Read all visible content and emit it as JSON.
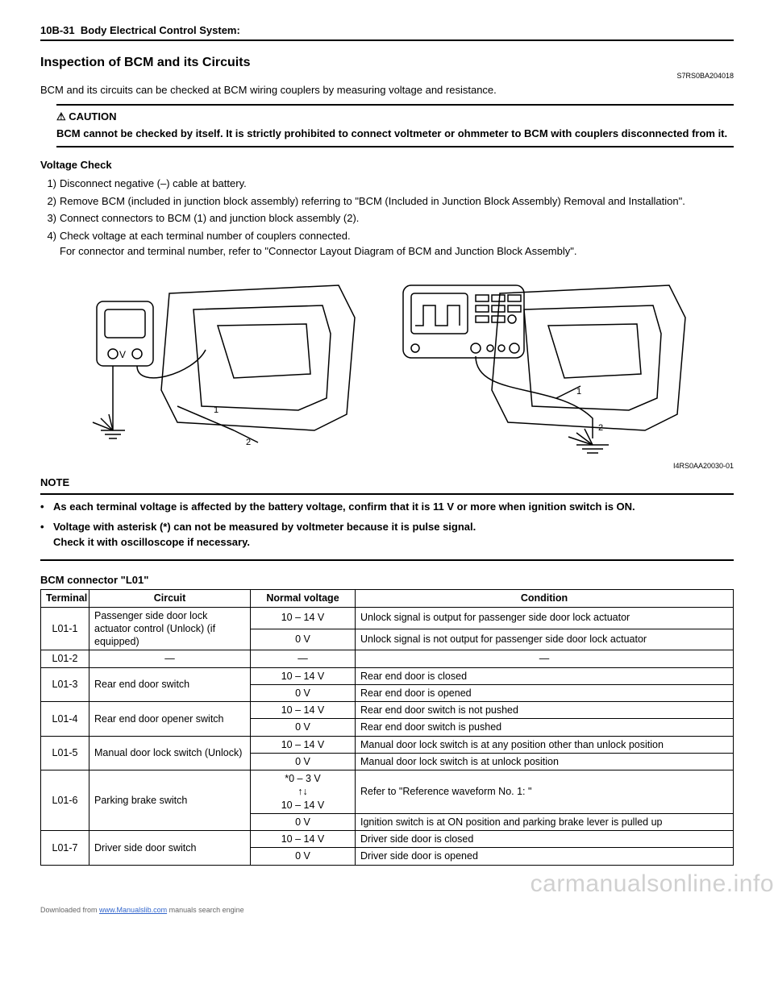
{
  "header": {
    "page_ref": "10B-31",
    "section": "Body Electrical Control System:"
  },
  "title": "Inspection of BCM and its Circuits",
  "doc_code": "S7RS0BA204018",
  "intro": "BCM and its circuits can be checked at BCM wiring couplers by measuring voltage and resistance.",
  "caution": {
    "label": "⚠ CAUTION",
    "text": "BCM cannot be checked by itself. It is strictly prohibited to connect voltmeter or ohmmeter to BCM with couplers disconnected from it."
  },
  "voltage_check": {
    "heading": "Voltage Check",
    "steps": [
      "Disconnect negative (–) cable at battery.",
      "Remove BCM (included in junction block assembly) referring to \"BCM (Included in Junction Block Assembly) Removal and Installation\".",
      "Connect connectors to BCM (1) and junction block assembly (2).",
      "Check voltage at each terminal number of couplers connected.\nFor connector and terminal number, refer to \"Connector Layout Diagram of BCM and Junction Block Assembly\"."
    ]
  },
  "figure_code": "I4RS0AA20030-01",
  "note": {
    "label": "NOTE",
    "items": [
      "As each terminal voltage is affected by the battery voltage, confirm that it is 11 V or more when ignition switch is ON.",
      "Voltage with asterisk (*) can not be measured by voltmeter because it is pulse signal.\nCheck it with oscilloscope if necessary."
    ]
  },
  "table": {
    "title": "BCM connector \"L01\"",
    "headers": [
      "Terminal",
      "Circuit",
      "Normal voltage",
      "Condition"
    ],
    "rows": [
      {
        "terminal": "L01-1",
        "circuit": "Passenger side door lock actuator control (Unlock) (if equipped)",
        "entries": [
          {
            "voltage": "10 – 14 V",
            "condition": "Unlock signal is output for passenger side door lock actuator"
          },
          {
            "voltage": "0 V",
            "condition": "Unlock signal is not output for passenger side door lock actuator"
          }
        ]
      },
      {
        "terminal": "L01-2",
        "circuit": "—",
        "entries": [
          {
            "voltage": "—",
            "condition": "—"
          }
        ]
      },
      {
        "terminal": "L01-3",
        "circuit": "Rear end door switch",
        "entries": [
          {
            "voltage": "10 – 14 V",
            "condition": "Rear end door is closed"
          },
          {
            "voltage": "0 V",
            "condition": "Rear end door is opened"
          }
        ]
      },
      {
        "terminal": "L01-4",
        "circuit": "Rear end door opener switch",
        "entries": [
          {
            "voltage": "10 – 14 V",
            "condition": "Rear end door switch is not pushed"
          },
          {
            "voltage": "0 V",
            "condition": "Rear end door switch is pushed"
          }
        ]
      },
      {
        "terminal": "L01-5",
        "circuit": "Manual door lock switch (Unlock)",
        "entries": [
          {
            "voltage": "10 – 14 V",
            "condition": "Manual door lock switch is at any position other than unlock position"
          },
          {
            "voltage": "0 V",
            "condition": "Manual door lock switch is at unlock position"
          }
        ]
      },
      {
        "terminal": "L01-6",
        "circuit": "Parking brake switch",
        "entries": [
          {
            "voltage": "*0 – 3 V\n↑↓\n10 – 14 V",
            "condition": "Refer to \"Reference waveform No. 1: \""
          },
          {
            "voltage": "0 V",
            "condition": "Ignition switch is at ON position and parking brake lever is pulled up"
          }
        ]
      },
      {
        "terminal": "L01-7",
        "circuit": "Driver side door switch",
        "entries": [
          {
            "voltage": "10 – 14 V",
            "condition": "Driver side door is closed"
          },
          {
            "voltage": "0 V",
            "condition": "Driver side door is opened"
          }
        ]
      }
    ]
  },
  "footer": {
    "text_pre": "Downloaded from ",
    "link": "www.Manualslib.com",
    "text_post": " manuals search engine"
  },
  "watermark": "carmanualsonline.info"
}
